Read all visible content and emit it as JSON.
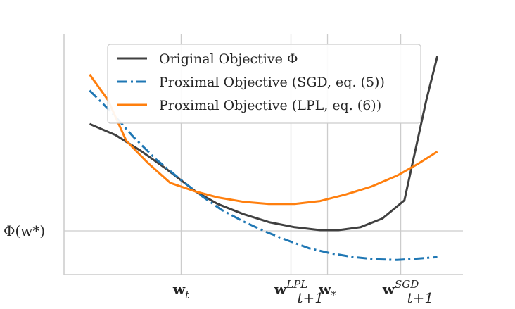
{
  "chart_data": {
    "type": "line",
    "title": "",
    "xlabel": "",
    "ylabel": "",
    "grid": true,
    "legend_position": "top",
    "x_ticks": [
      {
        "id": "wt",
        "x": 2.5,
        "base": "w",
        "sub": "t",
        "sup": ""
      },
      {
        "id": "wlpl",
        "x": 5.5,
        "base": "w",
        "sub": "t+1",
        "sup": "LPL"
      },
      {
        "id": "wstar",
        "x": 6.5,
        "base": "w",
        "sub": "*",
        "sup": ""
      },
      {
        "id": "wsgd",
        "x": 8.5,
        "base": "w",
        "sub": "t+1",
        "sup": "SGD"
      }
    ],
    "y_ticks": [
      {
        "id": "phi-wstar",
        "y": 0,
        "label": "Φ(w*)"
      }
    ],
    "xlim": [
      -0.7,
      10.2
    ],
    "ylim": [
      -0.6,
      2.7
    ],
    "series": [
      {
        "id": "original",
        "name": "Original Objective Φ",
        "color": "#404040",
        "dash": "solid",
        "x": [
          0,
          0.7,
          1.4,
          2.1,
          2.9,
          3.5,
          4.2,
          4.9,
          5.6,
          6.3,
          6.8,
          7.4,
          8.0,
          8.6,
          9.2,
          9.5
        ],
        "y": [
          1.47,
          1.32,
          1.1,
          0.85,
          0.54,
          0.37,
          0.23,
          0.12,
          0.05,
          0.01,
          0.01,
          0.05,
          0.17,
          0.42,
          1.8,
          2.4
        ]
      },
      {
        "id": "sgd",
        "name": "Proximal Objective (SGD, eq. (5))",
        "color": "#1f77b4",
        "dash": "dashdot",
        "x": [
          0,
          0.6,
          1.2,
          1.8,
          2.4,
          3.0,
          3.6,
          4.2,
          4.8,
          5.4,
          6.0,
          6.6,
          7.2,
          7.8,
          8.4,
          9.0,
          9.5
        ],
        "y": [
          1.93,
          1.63,
          1.29,
          0.99,
          0.74,
          0.5,
          0.29,
          0.13,
          -0.01,
          -0.13,
          -0.24,
          -0.31,
          -0.36,
          -0.39,
          -0.4,
          -0.38,
          -0.36
        ]
      },
      {
        "id": "lpl",
        "name": "Proximal Objective (LPL, eq. (6))",
        "color": "#ff7f0e",
        "dash": "solid",
        "x": [
          0,
          0.5,
          1.0,
          1.6,
          2.2,
          2.9,
          3.5,
          4.2,
          4.9,
          5.6,
          6.3,
          7.0,
          7.7,
          8.4,
          9.0,
          9.5
        ],
        "y": [
          2.15,
          1.8,
          1.24,
          0.93,
          0.66,
          0.54,
          0.46,
          0.4,
          0.37,
          0.37,
          0.41,
          0.5,
          0.61,
          0.76,
          0.93,
          1.09
        ]
      }
    ]
  }
}
